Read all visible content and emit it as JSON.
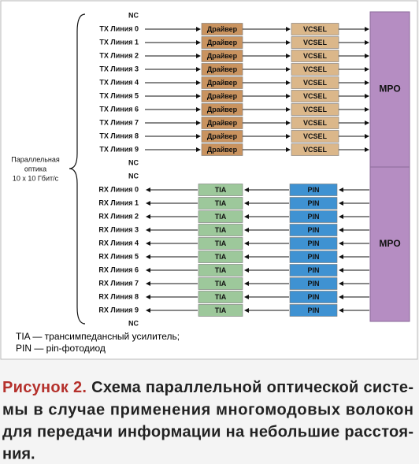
{
  "left_labels": [
    "NC",
    "TX Линия 0",
    "TX Линия 1",
    "TX Линия 2",
    "TX Линия 3",
    "TX Линия 4",
    "TX Линия 5",
    "TX Линия 6",
    "TX Линия 7",
    "TX Линия 8",
    "TX Линия 9",
    "NC",
    "NC",
    "RX Линия 0",
    "RX Линия 1",
    "RX Линия 2",
    "RX Линия 3",
    "RX Линия 4",
    "RX Линия 5",
    "RX Линия 6",
    "RX Линия 7",
    "RX Линия 8",
    "RX Линия 9",
    "NC"
  ],
  "group_label": [
    "Параллельная",
    "оптика",
    "10 x 10 Гбит/с"
  ],
  "tx": {
    "driver_labels": [
      "Драйвер",
      "Драйвер",
      "Драйвер",
      "Драйвер",
      "Драйвер",
      "Драйвер",
      "Драйвер",
      "Драйвер",
      "Драйвер",
      "Драйвер"
    ],
    "vcsel_labels": [
      "VCSEL",
      "VCSEL",
      "VCSEL",
      "VCSEL",
      "VCSEL",
      "VCSEL",
      "VCSEL",
      "VCSEL",
      "VCSEL",
      "VCSEL"
    ]
  },
  "rx": {
    "tia_labels": [
      "TIA",
      "TIA",
      "TIA",
      "TIA",
      "TIA",
      "TIA",
      "TIA",
      "TIA",
      "TIA",
      "TIA"
    ],
    "pin_labels": [
      "PIN",
      "PIN",
      "PIN",
      "PIN",
      "PIN",
      "PIN",
      "PIN",
      "PIN",
      "PIN",
      "PIN"
    ]
  },
  "mpo": [
    "MPO",
    "MPO"
  ],
  "legend": [
    "TIA — трансимпедансный усилитель;",
    "PIN — pin-фотодиод"
  ],
  "caption": {
    "label": "Рисунок 2.",
    "lines": [
      "Схема параллельной оптической систе-",
      "мы в случае применения многомодовых волокон",
      "для передачи информации на небольшие расстоя-",
      "ния."
    ]
  }
}
